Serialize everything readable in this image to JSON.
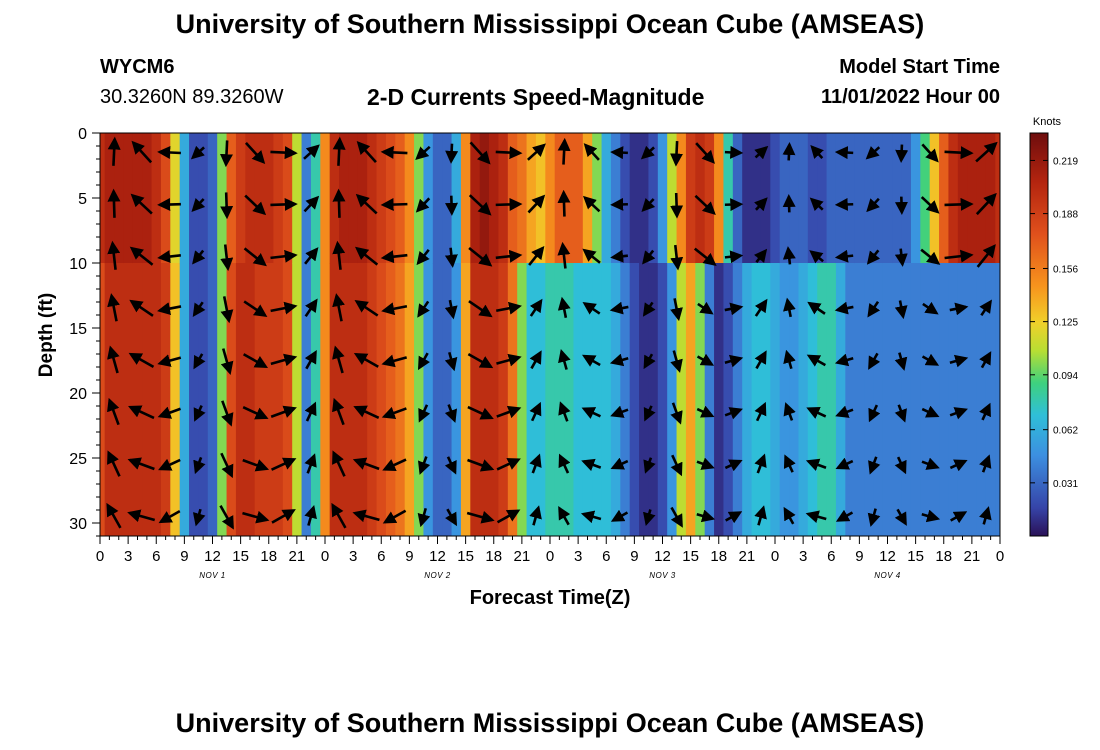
{
  "header": {
    "title": "University of Southern Mississippi Ocean Cube (AMSEAS)",
    "station_id": "WYCM6",
    "station_coords": "30.3260N  89.3260W",
    "subtitle": "2-D Currents Speed-Magnitude",
    "model_start_label": "Model Start Time",
    "model_start_value": "11/01/2022 Hour 00"
  },
  "footer": {
    "title": "University of Southern Mississippi Ocean Cube (AMSEAS)"
  },
  "chart_data": {
    "type": "heatmap",
    "title": "2-D Currents Speed-Magnitude",
    "xlabel": "Forecast Time(Z)",
    "ylabel": "Depth (ft)",
    "x_tick_labels": [
      "0",
      "3",
      "6",
      "9",
      "12",
      "15",
      "18",
      "21",
      "0",
      "3",
      "6",
      "9",
      "12",
      "15",
      "18",
      "21",
      "0",
      "3",
      "6",
      "9",
      "12",
      "15",
      "18",
      "21",
      "0",
      "3",
      "6",
      "9",
      "12",
      "15",
      "18",
      "21",
      "0"
    ],
    "x_range_hours": [
      0,
      96
    ],
    "day_labels": [
      "NOV 1",
      "NOV 2",
      "NOV 3",
      "NOV 4"
    ],
    "y_tick_labels": [
      "0",
      "5",
      "10",
      "15",
      "20",
      "25",
      "30"
    ],
    "ylim": [
      0,
      31
    ],
    "colorbar": {
      "label": "Knots",
      "tick_labels": [
        "0.219",
        "0.188",
        "0.156",
        "0.125",
        "0.094",
        "0.062",
        "0.031"
      ],
      "range": [
        0.0,
        0.235
      ]
    },
    "speed_profile_knots": [
      0.18,
      0.2,
      0.2,
      0.2,
      0.2,
      0.2,
      0.2,
      0.19,
      0.13,
      0.06,
      0.02,
      0.02,
      0.03,
      0.1,
      0.18,
      0.2,
      0.2,
      0.19,
      0.19,
      0.19,
      0.18,
      0.11,
      0.04,
      0.08,
      0.15,
      0.2,
      0.2,
      0.2,
      0.2,
      0.19,
      0.18,
      0.17,
      0.16,
      0.14,
      0.1,
      0.05,
      0.03,
      0.03,
      0.05,
      0.14,
      0.2,
      0.2,
      0.2,
      0.19,
      0.16,
      0.1,
      0.07,
      0.07,
      0.08,
      0.08,
      0.08,
      0.07,
      0.07,
      0.07,
      0.07,
      0.06,
      0.04,
      0.02,
      0.01,
      0.01,
      0.02,
      0.05,
      0.11,
      0.14,
      0.1,
      0.04,
      0.01,
      0.02,
      0.04,
      0.06,
      0.07,
      0.07,
      0.06,
      0.05,
      0.05,
      0.06,
      0.07,
      0.08,
      0.08,
      0.06,
      0.04,
      0.04,
      0.04,
      0.04,
      0.04,
      0.04,
      0.04,
      0.04,
      0.04,
      0.04,
      0.04,
      0.04,
      0.04,
      0.04,
      0.04,
      0.04,
      0.04
    ],
    "upper_layer_speed_knots": [
      0.2,
      0.21,
      0.21,
      0.21,
      0.21,
      0.21,
      0.2,
      0.18,
      0.12,
      0.06,
      0.02,
      0.02,
      0.03,
      0.1,
      0.17,
      0.19,
      0.2,
      0.2,
      0.2,
      0.19,
      0.18,
      0.11,
      0.04,
      0.08,
      0.15,
      0.2,
      0.21,
      0.21,
      0.21,
      0.2,
      0.19,
      0.18,
      0.17,
      0.15,
      0.1,
      0.05,
      0.03,
      0.03,
      0.06,
      0.15,
      0.21,
      0.22,
      0.21,
      0.2,
      0.17,
      0.16,
      0.14,
      0.13,
      0.15,
      0.17,
      0.17,
      0.17,
      0.14,
      0.1,
      0.06,
      0.04,
      0.02,
      0.01,
      0.01,
      0.02,
      0.05,
      0.11,
      0.15,
      0.19,
      0.2,
      0.19,
      0.15,
      0.08,
      0.03,
      0.01,
      0.01,
      0.01,
      0.02,
      0.03,
      0.03,
      0.03,
      0.02,
      0.02,
      0.03,
      0.03,
      0.03,
      0.03,
      0.03,
      0.03,
      0.03,
      0.03,
      0.03,
      0.05,
      0.09,
      0.13,
      0.17,
      0.2,
      0.21,
      0.21,
      0.21,
      0.21,
      0.2
    ]
  }
}
